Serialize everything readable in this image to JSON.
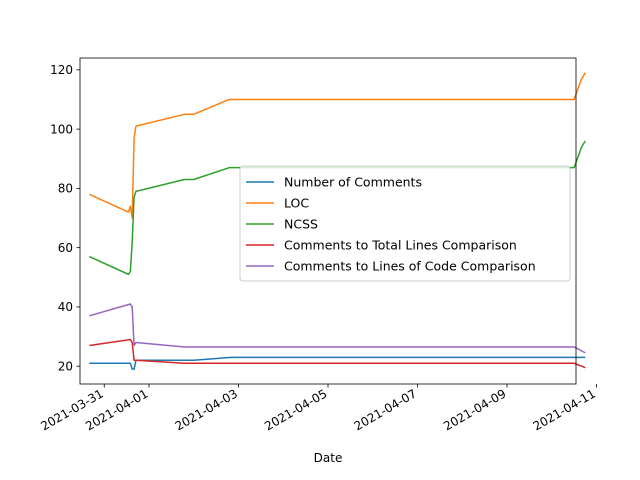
{
  "chart_data": {
    "type": "line",
    "title": "",
    "xlabel": "Date",
    "ylabel": "",
    "x_axis_type": "date",
    "xlim": [
      "2021-03-30T11:00",
      "2021-04-10T13:00"
    ],
    "ylim": [
      14,
      124
    ],
    "grid": false,
    "legend_location": "center-right",
    "x_ticks": [
      "2021-03-31",
      "2021-04-01",
      "2021-04-03",
      "2021-04-05",
      "2021-04-07",
      "2021-04-09",
      "2021-04-11"
    ],
    "y_ticks": [
      20,
      40,
      60,
      80,
      100,
      120
    ],
    "series": [
      {
        "name": "Number of Comments",
        "color": "#1f77b4",
        "points": [
          [
            "2021-03-30T16:00",
            21
          ],
          [
            "2021-03-31T14:00",
            21
          ],
          [
            "2021-03-31T15:00",
            19
          ],
          [
            "2021-03-31T16:00",
            19
          ],
          [
            "2021-03-31T17:00",
            22
          ],
          [
            "2021-04-02T00:00",
            22
          ],
          [
            "2021-04-02T20:00",
            23
          ],
          [
            "2021-04-10T18:00",
            23
          ]
        ]
      },
      {
        "name": "LOC",
        "color": "#ff7f0e",
        "points": [
          [
            "2021-03-30T16:00",
            78
          ],
          [
            "2021-03-31T13:00",
            72
          ],
          [
            "2021-03-31T14:00",
            74
          ],
          [
            "2021-03-31T15:00",
            70
          ],
          [
            "2021-03-31T16:00",
            97
          ],
          [
            "2021-03-31T17:00",
            101
          ],
          [
            "2021-04-01T19:00",
            105
          ],
          [
            "2021-04-02T00:00",
            105
          ],
          [
            "2021-04-02T19:00",
            110
          ],
          [
            "2021-04-10T12:00",
            110
          ],
          [
            "2021-04-10T16:00",
            117
          ],
          [
            "2021-04-10T18:00",
            119
          ]
        ]
      },
      {
        "name": "NCSS",
        "color": "#2ca02c",
        "points": [
          [
            "2021-03-30T16:00",
            57
          ],
          [
            "2021-03-31T13:00",
            51
          ],
          [
            "2021-03-31T14:00",
            52
          ],
          [
            "2021-03-31T15:00",
            62
          ],
          [
            "2021-03-31T16:00",
            77
          ],
          [
            "2021-03-31T17:00",
            79
          ],
          [
            "2021-04-01T19:00",
            83
          ],
          [
            "2021-04-02T00:00",
            83
          ],
          [
            "2021-04-02T19:00",
            87
          ],
          [
            "2021-04-10T12:00",
            87
          ],
          [
            "2021-04-10T16:00",
            94
          ],
          [
            "2021-04-10T18:00",
            96
          ]
        ]
      },
      {
        "name": "Comments to Total Lines Comparison",
        "color": "#d62728",
        "points": [
          [
            "2021-03-30T16:00",
            27
          ],
          [
            "2021-03-31T14:00",
            29
          ],
          [
            "2021-03-31T15:00",
            28
          ],
          [
            "2021-03-31T16:00",
            22
          ],
          [
            "2021-03-31T17:00",
            22
          ],
          [
            "2021-04-01T19:00",
            21
          ],
          [
            "2021-04-10T12:00",
            21
          ],
          [
            "2021-04-10T18:00",
            19.5
          ]
        ]
      },
      {
        "name": "Comments to Lines of Code Comparison",
        "color": "#9467bd",
        "points": [
          [
            "2021-03-30T16:00",
            37
          ],
          [
            "2021-03-31T14:00",
            41
          ],
          [
            "2021-03-31T15:00",
            40
          ],
          [
            "2021-03-31T16:00",
            27
          ],
          [
            "2021-03-31T17:00",
            28
          ],
          [
            "2021-04-01T19:00",
            26.5
          ],
          [
            "2021-04-10T12:00",
            26.5
          ],
          [
            "2021-04-10T18:00",
            24.5
          ]
        ]
      }
    ]
  }
}
